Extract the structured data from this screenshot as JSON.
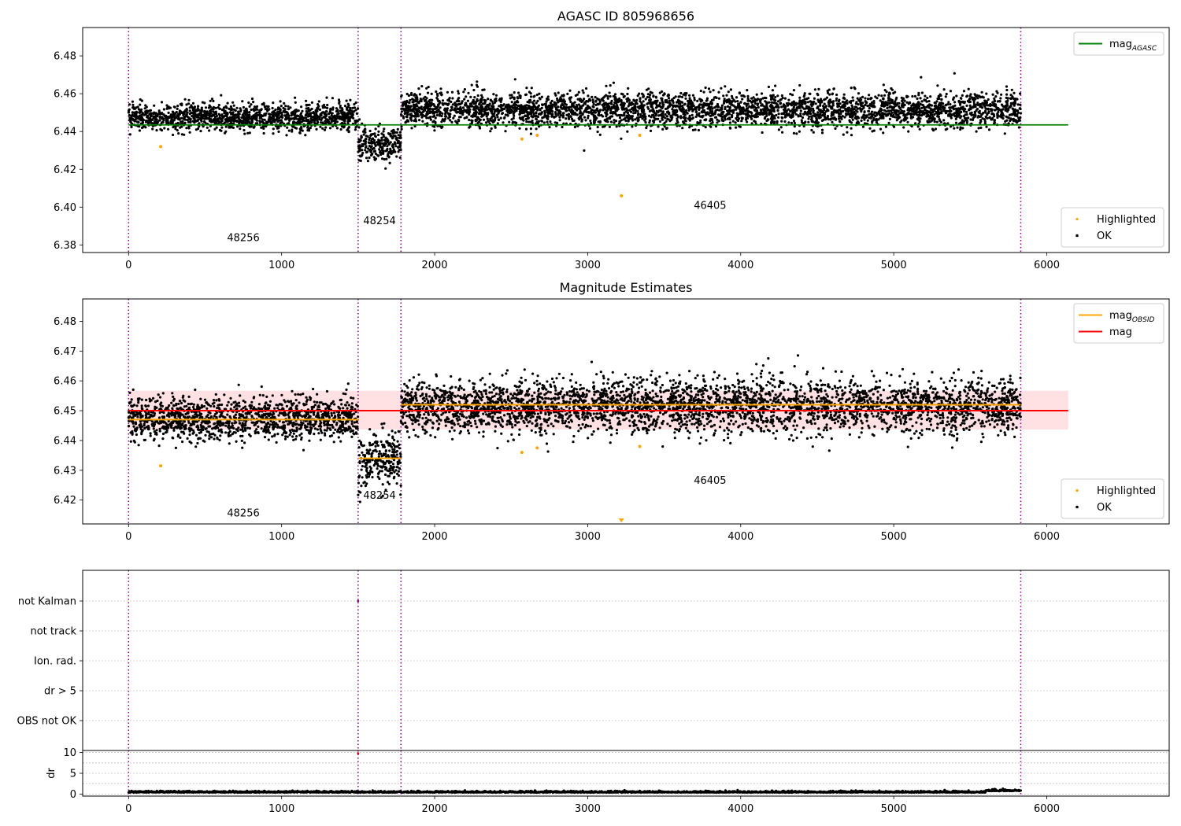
{
  "chart_data": [
    {
      "type": "scatter",
      "title": "AGASC ID 805968656",
      "xlim": [
        -300,
        6800
      ],
      "ylim": [
        6.376,
        6.495
      ],
      "xticks": [
        0,
        1000,
        2000,
        3000,
        4000,
        5000,
        6000
      ],
      "yticks": [
        6.38,
        6.4,
        6.42,
        6.44,
        6.46,
        6.48
      ],
      "grid": false,
      "obsid_boundaries": [
        0,
        1500,
        1780,
        5830
      ],
      "obsid_labels": [
        {
          "label": "48256",
          "x": 750,
          "y": 6.382
        },
        {
          "label": "48254",
          "x": 1640,
          "y": 6.391
        },
        {
          "label": "46405",
          "x": 3800,
          "y": 6.399
        }
      ],
      "segments": [
        {
          "x0": 0,
          "x1": 1500,
          "mean": 6.4475,
          "spread": 0.0035
        },
        {
          "x0": 1500,
          "x1": 1780,
          "mean": 6.433,
          "spread": 0.0045
        },
        {
          "x0": 1780,
          "x1": 5830,
          "mean": 6.4515,
          "spread": 0.0045
        }
      ],
      "highlighted": [
        [
          210,
          6.432
        ],
        [
          2570,
          6.436
        ],
        [
          2670,
          6.438
        ],
        [
          3220,
          6.406
        ],
        [
          3340,
          6.438
        ]
      ],
      "reference_lines": [
        {
          "name": "mag_AGASC",
          "y": 6.4435,
          "x0": 0,
          "x1": 6140,
          "color": "#008000"
        }
      ],
      "legends": [
        {
          "position": "top-right",
          "entries": [
            {
              "label": "mag",
              "sub": "AGASC",
              "kind": "line",
              "color": "#008000"
            }
          ]
        },
        {
          "position": "bottom-right",
          "entries": [
            {
              "label": "Highlighted",
              "kind": "dot",
              "color": "#ffa500"
            },
            {
              "label": "OK",
              "kind": "dot",
              "color": "#000000"
            }
          ]
        }
      ]
    },
    {
      "type": "scatter",
      "title": "Magnitude Estimates",
      "xlim": [
        -300,
        6800
      ],
      "ylim": [
        6.412,
        6.4875
      ],
      "xticks": [
        0,
        1000,
        2000,
        3000,
        4000,
        5000,
        6000
      ],
      "yticks": [
        6.42,
        6.43,
        6.44,
        6.45,
        6.46,
        6.47,
        6.48
      ],
      "grid": false,
      "obsid_boundaries": [
        0,
        1500,
        1780,
        5830
      ],
      "obsid_labels": [
        {
          "label": "48256",
          "x": 750,
          "y": 6.4145
        },
        {
          "label": "48254",
          "x": 1640,
          "y": 6.4205
        },
        {
          "label": "46405",
          "x": 3800,
          "y": 6.4255
        }
      ],
      "segments": [
        {
          "x0": 0,
          "x1": 1500,
          "mean": 6.4475,
          "spread": 0.0035
        },
        {
          "x0": 1500,
          "x1": 1780,
          "mean": 6.433,
          "spread": 0.0045
        },
        {
          "x0": 1780,
          "x1": 5830,
          "mean": 6.4515,
          "spread": 0.0045
        }
      ],
      "highlighted": [
        [
          210,
          6.4315
        ],
        [
          2570,
          6.436
        ],
        [
          2670,
          6.4375
        ],
        [
          3340,
          6.438
        ]
      ],
      "mag_band": {
        "x0": 0,
        "x1": 6140,
        "y0": 6.4437,
        "y1": 6.4567,
        "color": "#ffd6da"
      },
      "reference_lines": [
        {
          "name": "mag_OBSID",
          "y": 6.447,
          "x0": 0,
          "x1": 1500,
          "color": "#ffa500"
        },
        {
          "name": "mag_OBSID",
          "y": 6.434,
          "x0": 1500,
          "x1": 1780,
          "color": "#ffa500"
        },
        {
          "name": "mag_OBSID",
          "y": 6.452,
          "x0": 1780,
          "x1": 5830,
          "color": "#ffa500"
        },
        {
          "name": "mag",
          "y": 6.45,
          "x0": 0,
          "x1": 6140,
          "color": "#ff0000"
        }
      ],
      "off_scale_marker": {
        "x": 3220,
        "color": "#ffa500"
      },
      "legends": [
        {
          "position": "top-right",
          "entries": [
            {
              "label": "mag",
              "sub": "OBSID",
              "kind": "line",
              "color": "#ffa500"
            },
            {
              "label": "mag",
              "kind": "line",
              "color": "#ff0000"
            }
          ]
        },
        {
          "position": "bottom-right",
          "entries": [
            {
              "label": "Highlighted",
              "kind": "dot",
              "color": "#ffa500"
            },
            {
              "label": "OK",
              "kind": "dot",
              "color": "#000000"
            }
          ]
        }
      ]
    },
    {
      "type": "scatter",
      "title": "",
      "xlim": [
        -300,
        6800
      ],
      "categories": [
        "not Kalman",
        "not track",
        "Ion. rad.",
        "dr > 5",
        "OBS not OK"
      ],
      "grid": true,
      "obsid_boundaries": [
        0,
        1500,
        1780,
        5830
      ],
      "flags": [
        {
          "category": "not Kalman",
          "x": 1500
        }
      ]
    },
    {
      "type": "scatter",
      "title": "",
      "ylabel": "dr",
      "xlim": [
        -300,
        6800
      ],
      "ylim": [
        -0.5,
        10.5
      ],
      "xticks": [
        0,
        1000,
        2000,
        3000,
        4000,
        5000,
        6000
      ],
      "yticks": [
        0,
        5,
        10
      ],
      "grid": true,
      "obsid_boundaries": [
        0,
        1500,
        1780,
        5830
      ],
      "baseline": 0.35,
      "outliers": [
        [
          1500,
          9.8
        ]
      ]
    }
  ]
}
